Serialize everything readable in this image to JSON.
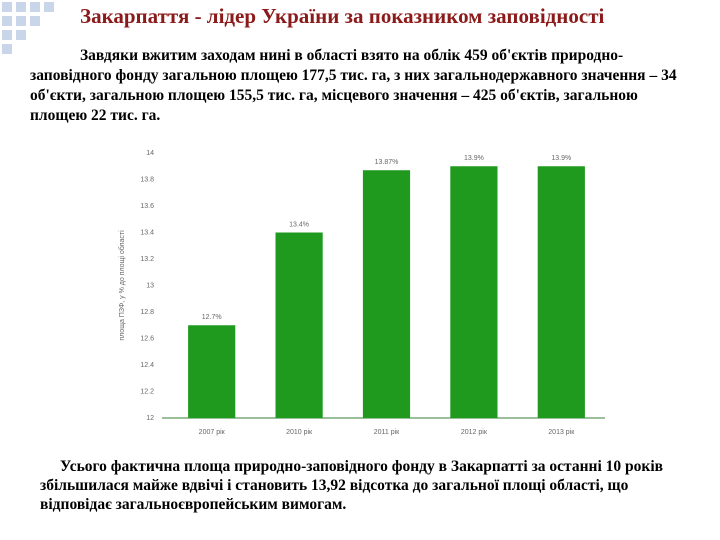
{
  "slide": {
    "title": "Закарпаття - лідер України за показником заповідності",
    "intro": "Завдяки вжитим заходам нині в області взято на облік 459 об'єктів природно-заповідного фонду загальною площею 177,5 тис. га, з них загальнодержавного значення – 34 об'єкти, загальною площею 155,5 тис. га, місцевого значення – 425 об'єктів, загальною площею 22 тис. га.",
    "conclusion": "Усього фактична площа природно-заповідного фонду в Закарпатті за останні 10 років збільшилася майже вдвічі і становить 13,92 відсотка до загальної площі області, що відповідає загальноєвропейським вимогам."
  },
  "chart_data": {
    "type": "bar",
    "y_label": "площа ПЗФ, у % до площі області",
    "categories": [
      "2007 рік",
      "2010 рік",
      "2011 рік",
      "2012 рік",
      "2013 рік"
    ],
    "values": [
      12.7,
      13.4,
      13.87,
      13.9,
      13.9
    ],
    "value_labels": [
      "12.7%",
      "13.4%",
      "13.87%",
      "13.9%",
      "13.9%"
    ],
    "color": "#1f9a1f",
    "ylim": [
      12,
      14
    ],
    "yticks": [
      12,
      12.2,
      12.4,
      12.6,
      12.8,
      13,
      13.2,
      13.4,
      13.6,
      13.8,
      14
    ],
    "grid": false
  }
}
